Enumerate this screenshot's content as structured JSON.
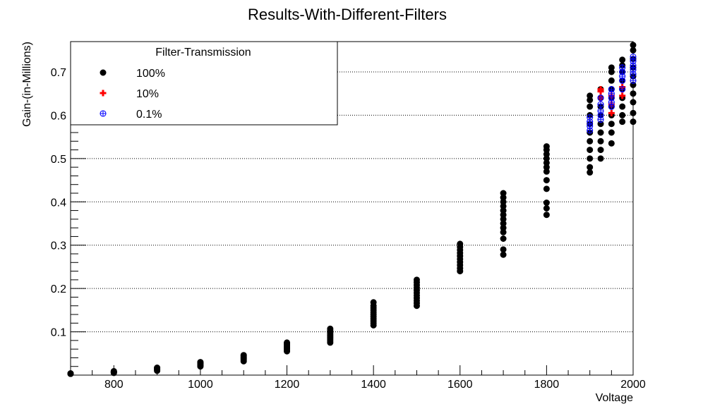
{
  "chart_data": {
    "type": "scatter",
    "title": "Results-With-Different-Filters",
    "xlabel": "Voltage",
    "ylabel": "Gain-(in-Millions)",
    "xlim": [
      700,
      2000
    ],
    "ylim": [
      0,
      0.77
    ],
    "x_ticks": [
      800,
      1000,
      1200,
      1400,
      1600,
      1800,
      2000
    ],
    "y_ticks": [
      0.1,
      0.2,
      0.3,
      0.4,
      0.5,
      0.6,
      0.7
    ],
    "grid": "horizontal dotted",
    "legend": {
      "title": "Filter-Transmission",
      "placement": "top-left",
      "entries": [
        "100%",
        "10%",
        "0.1%"
      ]
    },
    "series": [
      {
        "name": "100%",
        "marker": "filled-circle",
        "color": "#000000",
        "groups": [
          {
            "x": 700,
            "y": [
              0.003,
              0.003,
              0.004
            ]
          },
          {
            "x": 800,
            "y": [
              0.005,
              0.006,
              0.007,
              0.008,
              0.009
            ]
          },
          {
            "x": 900,
            "y": [
              0.01,
              0.012,
              0.014,
              0.016,
              0.017
            ]
          },
          {
            "x": 1000,
            "y": [
              0.02,
              0.022,
              0.024,
              0.026,
              0.028,
              0.03
            ]
          },
          {
            "x": 1100,
            "y": [
              0.032,
              0.035,
              0.038,
              0.041,
              0.044,
              0.046
            ]
          },
          {
            "x": 1200,
            "y": [
              0.055,
              0.058,
              0.061,
              0.064,
              0.067,
              0.07,
              0.073,
              0.075
            ]
          },
          {
            "x": 1300,
            "y": [
              0.075,
              0.079,
              0.083,
              0.087,
              0.091,
              0.095,
              0.099,
              0.103,
              0.107
            ]
          },
          {
            "x": 1400,
            "y": [
              0.115,
              0.12,
              0.125,
              0.13,
              0.135,
              0.14,
              0.145,
              0.15,
              0.155,
              0.16,
              0.168
            ]
          },
          {
            "x": 1500,
            "y": [
              0.16,
              0.166,
              0.172,
              0.178,
              0.184,
              0.19,
              0.196,
              0.202,
              0.208,
              0.214,
              0.22
            ]
          },
          {
            "x": 1600,
            "y": [
              0.24,
              0.247,
              0.254,
              0.261,
              0.268,
              0.275,
              0.282,
              0.289,
              0.296,
              0.303
            ]
          },
          {
            "x": 1700,
            "y": [
              0.278,
              0.29,
              0.315,
              0.33,
              0.34,
              0.35,
              0.36,
              0.37,
              0.38,
              0.39,
              0.4,
              0.41,
              0.42
            ]
          },
          {
            "x": 1800,
            "y": [
              0.37,
              0.385,
              0.398,
              0.43,
              0.45,
              0.47,
              0.48,
              0.49,
              0.5,
              0.51,
              0.52,
              0.528
            ]
          },
          {
            "x": 1900,
            "y": [
              0.468,
              0.48,
              0.5,
              0.52,
              0.54,
              0.56,
              0.58,
              0.6,
              0.62,
              0.635,
              0.645
            ]
          },
          {
            "x": 1925,
            "y": [
              0.5,
              0.52,
              0.54,
              0.56,
              0.58,
              0.6,
              0.62,
              0.64,
              0.66
            ]
          },
          {
            "x": 1950,
            "y": [
              0.535,
              0.56,
              0.58,
              0.6,
              0.62,
              0.64,
              0.66,
              0.68,
              0.7,
              0.71
            ]
          },
          {
            "x": 1975,
            "y": [
              0.585,
              0.6,
              0.62,
              0.64,
              0.66,
              0.68,
              0.7,
              0.715,
              0.728
            ]
          },
          {
            "x": 2000,
            "y": [
              0.585,
              0.605,
              0.63,
              0.65,
              0.67,
              0.69,
              0.71,
              0.73,
              0.75,
              0.762
            ]
          }
        ]
      },
      {
        "name": "10%",
        "marker": "plus",
        "color": "#ff0000",
        "groups": [
          {
            "x": 1950,
            "y": [
              0.605,
              0.625,
              0.645
            ]
          },
          {
            "x": 1925,
            "y": [
              0.64,
              0.655,
              0.66
            ]
          },
          {
            "x": 1975,
            "y": [
              0.645,
              0.665
            ]
          }
        ]
      },
      {
        "name": "0.1%",
        "marker": "circle-plus",
        "color": "#0000ff",
        "groups": [
          {
            "x": 1900,
            "y": [
              0.565,
              0.575,
              0.585,
              0.595
            ]
          },
          {
            "x": 1925,
            "y": [
              0.59,
              0.6,
              0.61,
              0.625,
              0.64
            ]
          },
          {
            "x": 1950,
            "y": [
              0.62,
              0.63,
              0.64,
              0.65,
              0.66
            ]
          },
          {
            "x": 1975,
            "y": [
              0.66,
              0.68,
              0.69,
              0.7,
              0.71
            ]
          },
          {
            "x": 2000,
            "y": [
              0.68,
              0.695,
              0.705,
              0.715,
              0.725,
              0.735
            ]
          }
        ]
      }
    ]
  }
}
